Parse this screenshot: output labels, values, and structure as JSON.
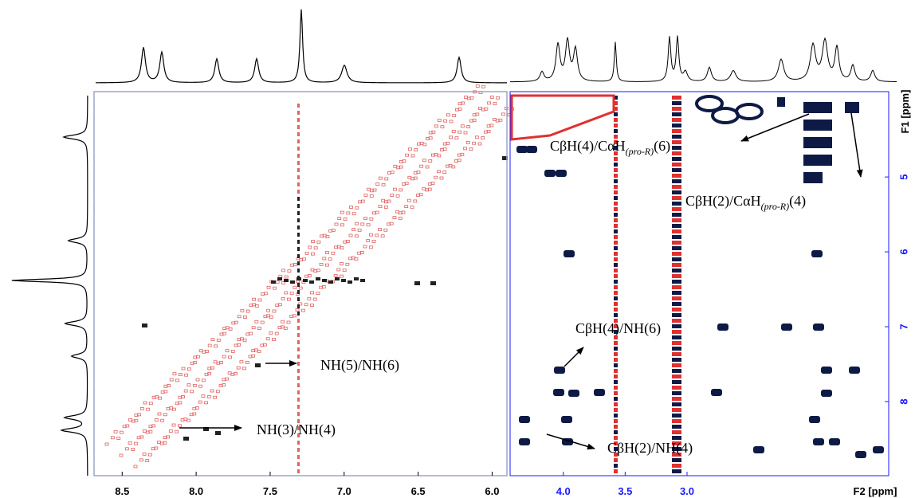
{
  "chart_data": [
    {
      "type": "nmr-2d",
      "xlim": [
        8.69,
        5.9
      ],
      "xticks": [
        8.5,
        {
          "value": 8,
          "label": "8.0"
        },
        7.5,
        {
          "value": 7,
          "label": "7.0"
        },
        6.5,
        {
          "value": 6,
          "label": "6.0"
        }
      ],
      "tick_color": "#000000",
      "annotations": [
        {
          "text": "NH(5)/NH(6)"
        },
        {
          "text": "NH(3)/NH(4)"
        }
      ]
    },
    {
      "type": "nmr-2d",
      "xlim": [
        4.43,
        1.37
      ],
      "ylim": [
        3.86,
        8.99
      ],
      "xticks": [
        {
          "value": 4,
          "label": "4.0"
        },
        3.5,
        {
          "value": 3,
          "label": "3.0"
        }
      ],
      "yticks": [
        5,
        6,
        7,
        8
      ],
      "x_label": "F2 [ppm]",
      "y_label": "F1 [ppm]",
      "tick_color": "#1a1aff",
      "annotations": [
        {
          "text": [
            "CβH(4)/CαH",
            "(pro-R)",
            "(6)"
          ]
        },
        {
          "text": [
            "CβH(2)/CαH",
            "(pro-R)",
            "(4)"
          ]
        },
        {
          "text": "CβH(4)/NH(6)"
        },
        {
          "text": "CβH(2)/NH(4)"
        }
      ]
    }
  ]
}
